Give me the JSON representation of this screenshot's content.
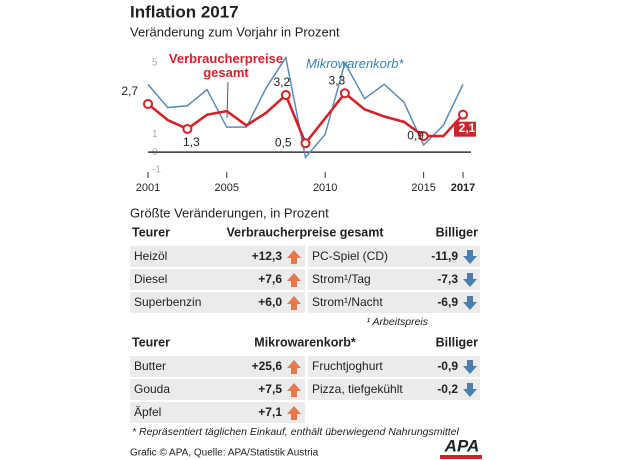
{
  "chart_data": {
    "type": "line",
    "title": "Inflation 2017",
    "subtitle": "Veränderung zum Vorjahr in Prozent",
    "x": [
      2001,
      2002,
      2003,
      2004,
      2005,
      2006,
      2007,
      2008,
      2009,
      2010,
      2011,
      2012,
      2013,
      2014,
      2015,
      2016,
      2017
    ],
    "series": [
      {
        "name": "Mikrowarenkorb*",
        "color": "#5b8db8",
        "values": [
          3.8,
          2.5,
          2.6,
          3.5,
          1.4,
          1.4,
          3.6,
          5.3,
          -0.3,
          1.0,
          5.0,
          3.0,
          3.8,
          2.8,
          0.4,
          1.5,
          3.8
        ]
      },
      {
        "name": "Verbraucherpreise gesamt",
        "color": "#d2232a",
        "values": [
          2.7,
          1.8,
          1.3,
          2.1,
          2.3,
          1.5,
          2.2,
          3.2,
          0.5,
          1.9,
          3.3,
          2.4,
          2.0,
          1.7,
          0.9,
          0.9,
          2.1
        ],
        "value_labels": [
          "2,7",
          null,
          "1,3",
          null,
          null,
          null,
          null,
          "3,2",
          "0,5",
          null,
          "3,3",
          null,
          null,
          null,
          "0,9",
          null,
          "2,1"
        ]
      }
    ],
    "xlim": [
      2001,
      2017
    ],
    "xticks": [
      2001,
      2005,
      2010,
      2015,
      2017
    ],
    "ylim": [
      -1,
      5.5
    ],
    "yticks": [
      -1,
      0,
      1,
      5
    ]
  },
  "section_title": "Größte Veränderungen, in Prozent",
  "tables": [
    {
      "headers": [
        "Teurer",
        "Verbraucherpreise gesamt",
        "Billiger"
      ],
      "up": [
        [
          "Heizöl",
          "+12,3"
        ],
        [
          "Diesel",
          "+7,6"
        ],
        [
          "Superbenzin",
          "+6,0"
        ]
      ],
      "down": [
        [
          "PC-Spiel (CD)",
          "-11,9"
        ],
        [
          "Strom¹/Tag",
          "-7,3"
        ],
        [
          "Strom¹/Nacht",
          "-6,9"
        ]
      ],
      "note": "¹ Arbeitspreis"
    },
    {
      "headers": [
        "Teurer",
        "Mikrowarenkorb*",
        "Billiger"
      ],
      "up": [
        [
          "Butter",
          "+25,6"
        ],
        [
          "Gouda",
          "+7,5"
        ],
        [
          "Äpfel",
          "+7,1"
        ]
      ],
      "down": [
        [
          "Fruchtjoghurt",
          "-0,9"
        ],
        [
          "Pizza, tiefgekühlt",
          "-0,2"
        ]
      ],
      "note": "* Repräsentiert täglichen Einkauf, enthält überwiegend Nahrungsmittel"
    }
  ],
  "source": "Grafic © APA, Quelle: APA/Statistik Austria",
  "logo": "APA"
}
